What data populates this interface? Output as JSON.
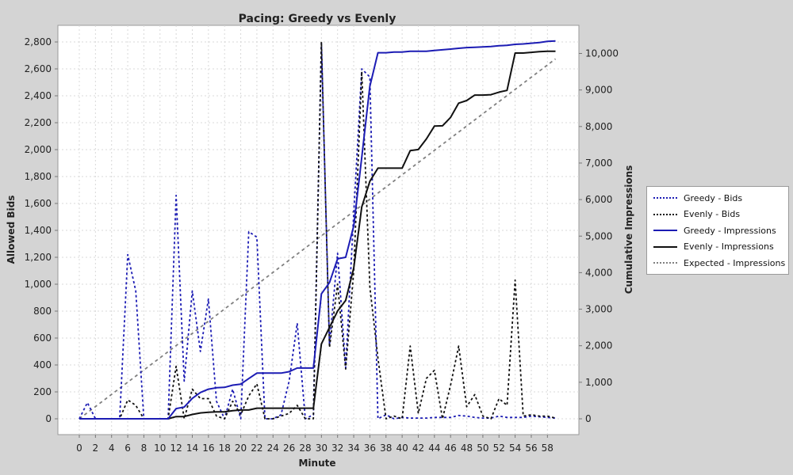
{
  "chart_data": {
    "type": "line",
    "title": "Pacing: Greedy vs Evenly",
    "xlabel": "Minute",
    "ylabel_left": "Allowed Bids",
    "ylabel_right": "Cumulative Impressions",
    "xlim": [
      0,
      59
    ],
    "ylim_left": [
      0,
      2800
    ],
    "ylim_right": [
      0,
      10000
    ],
    "x_ticks": [
      0,
      2,
      4,
      6,
      8,
      10,
      12,
      14,
      16,
      18,
      20,
      22,
      24,
      26,
      28,
      30,
      32,
      34,
      36,
      38,
      40,
      42,
      44,
      46,
      48,
      50,
      52,
      54,
      56,
      58
    ],
    "y_ticks_left": [
      "0",
      "200",
      "400",
      "600",
      "800",
      "1,000",
      "1,200",
      "1,400",
      "1,600",
      "1,800",
      "2,000",
      "2,200",
      "2,400",
      "2,600",
      "2,800"
    ],
    "y_ticks_right": [
      "0",
      "1,000",
      "2,000",
      "3,000",
      "4,000",
      "5,000",
      "6,000",
      "7,000",
      "8,000",
      "9,000",
      "10,000"
    ],
    "grid": true,
    "legend_position": "right",
    "x": [
      0,
      1,
      2,
      3,
      4,
      5,
      6,
      7,
      8,
      9,
      10,
      11,
      12,
      13,
      14,
      15,
      16,
      17,
      18,
      19,
      20,
      21,
      22,
      23,
      24,
      25,
      26,
      27,
      28,
      29,
      30,
      31,
      32,
      33,
      34,
      35,
      36,
      37,
      38,
      39,
      40,
      41,
      42,
      43,
      44,
      45,
      46,
      47,
      48,
      49,
      50,
      51,
      52,
      53,
      54,
      55,
      56,
      57,
      58,
      59
    ],
    "series": [
      {
        "name": "Greedy - Bids",
        "axis": "left",
        "color": "#1c1cb4",
        "dash": "3,3",
        "values": [
          0,
          120,
          0,
          0,
          0,
          0,
          1220,
          950,
          0,
          0,
          0,
          0,
          1660,
          280,
          950,
          500,
          890,
          130,
          0,
          220,
          0,
          1390,
          1350,
          0,
          0,
          30,
          280,
          710,
          0,
          30,
          2790,
          550,
          1230,
          380,
          1530,
          2600,
          2540,
          0,
          30,
          0,
          10,
          5,
          5,
          5,
          10,
          10,
          10,
          25,
          20,
          10,
          5,
          5,
          20,
          10,
          10,
          10,
          20,
          15,
          10,
          5
        ]
      },
      {
        "name": "Evenly - Bids",
        "axis": "left",
        "color": "#111111",
        "dash": "3,3",
        "values": [
          0,
          0,
          0,
          0,
          0,
          0,
          140,
          100,
          0,
          0,
          0,
          0,
          390,
          0,
          220,
          150,
          150,
          20,
          0,
          130,
          30,
          170,
          260,
          0,
          0,
          20,
          40,
          100,
          0,
          0,
          2800,
          530,
          1000,
          370,
          1100,
          2580,
          980,
          450,
          0,
          20,
          0,
          540,
          40,
          300,
          360,
          0,
          250,
          540,
          90,
          180,
          20,
          0,
          150,
          100,
          1030,
          20,
          30,
          20,
          20,
          5
        ]
      },
      {
        "name": "Greedy - Impressions",
        "axis": "right",
        "color": "#1c1cb4",
        "dash": "",
        "values": [
          0,
          0,
          0,
          0,
          0,
          0,
          0,
          0,
          0,
          0,
          0,
          0,
          280,
          320,
          560,
          720,
          810,
          850,
          860,
          920,
          950,
          1100,
          1250,
          1250,
          1250,
          1250,
          1290,
          1390,
          1390,
          1390,
          3420,
          3730,
          4380,
          4420,
          5280,
          7160,
          9100,
          10020,
          10020,
          10040,
          10040,
          10060,
          10060,
          10060,
          10080,
          10100,
          10120,
          10140,
          10160,
          10170,
          10180,
          10190,
          10210,
          10220,
          10250,
          10260,
          10280,
          10300,
          10330,
          10340
        ]
      },
      {
        "name": "Evenly - Impressions",
        "axis": "right",
        "color": "#111111",
        "dash": "",
        "values": [
          0,
          0,
          0,
          0,
          0,
          0,
          0,
          0,
          0,
          0,
          0,
          0,
          60,
          60,
          120,
          160,
          180,
          190,
          190,
          220,
          240,
          240,
          290,
          290,
          290,
          290,
          290,
          290,
          290,
          290,
          2050,
          2500,
          2950,
          3240,
          4130,
          5800,
          6500,
          6860,
          6860,
          6860,
          6860,
          7340,
          7370,
          7660,
          8010,
          8020,
          8250,
          8640,
          8710,
          8860,
          8860,
          8870,
          8940,
          8990,
          10010,
          10010,
          10030,
          10050,
          10060,
          10060
        ]
      },
      {
        "name": "Expected - Impressions",
        "axis": "right",
        "color": "#808080",
        "dash": "4,4",
        "x": [
          0,
          59
        ],
        "values": [
          0,
          9850
        ]
      }
    ]
  }
}
